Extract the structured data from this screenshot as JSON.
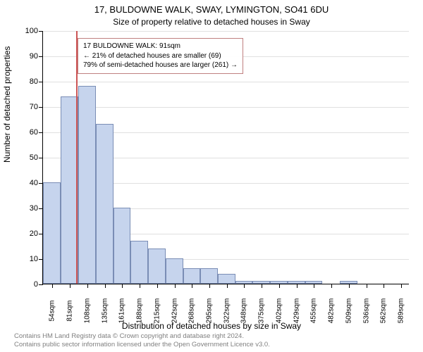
{
  "chart": {
    "type": "histogram",
    "title_main": "17, BULDOWNE WALK, SWAY, LYMINGTON, SO41 6DU",
    "title_sub": "Size of property relative to detached houses in Sway",
    "x_axis_label": "Distribution of detached houses by size in Sway",
    "y_axis_label": "Number of detached properties",
    "background_color": "#ffffff",
    "grid_color": "#e0e0e0",
    "bar_fill_color": "#c6d4ed",
    "bar_border_color": "#7a8db5",
    "marker_color": "#cc5555",
    "marker_x_value": 91,
    "x_min": 40,
    "x_max": 602,
    "ylim": [
      0,
      100
    ],
    "ytick_step": 10,
    "x_tick_labels": [
      "54sqm",
      "81sqm",
      "108sqm",
      "135sqm",
      "161sqm",
      "188sqm",
      "215sqm",
      "242sqm",
      "268sqm",
      "295sqm",
      "322sqm",
      "348sqm",
      "375sqm",
      "402sqm",
      "429sqm",
      "455sqm",
      "482sqm",
      "509sqm",
      "536sqm",
      "562sqm",
      "589sqm"
    ],
    "x_tick_values": [
      54,
      81,
      108,
      135,
      161,
      188,
      215,
      242,
      268,
      295,
      322,
      348,
      375,
      402,
      429,
      455,
      482,
      509,
      536,
      562,
      589
    ],
    "bars": [
      {
        "x_start": 40,
        "x_end": 67,
        "value": 40
      },
      {
        "x_start": 67,
        "x_end": 94,
        "value": 74
      },
      {
        "x_start": 94,
        "x_end": 121,
        "value": 78
      },
      {
        "x_start": 121,
        "x_end": 148,
        "value": 63
      },
      {
        "x_start": 148,
        "x_end": 174,
        "value": 30
      },
      {
        "x_start": 174,
        "x_end": 201,
        "value": 17
      },
      {
        "x_start": 201,
        "x_end": 228,
        "value": 14
      },
      {
        "x_start": 228,
        "x_end": 255,
        "value": 10
      },
      {
        "x_start": 255,
        "x_end": 281,
        "value": 6
      },
      {
        "x_start": 281,
        "x_end": 308,
        "value": 6
      },
      {
        "x_start": 308,
        "x_end": 335,
        "value": 4
      },
      {
        "x_start": 335,
        "x_end": 361,
        "value": 1
      },
      {
        "x_start": 361,
        "x_end": 388,
        "value": 1
      },
      {
        "x_start": 388,
        "x_end": 415,
        "value": 1
      },
      {
        "x_start": 415,
        "x_end": 442,
        "value": 1
      },
      {
        "x_start": 442,
        "x_end": 468,
        "value": 1
      },
      {
        "x_start": 468,
        "x_end": 495,
        "value": 0
      },
      {
        "x_start": 495,
        "x_end": 522,
        "value": 1
      },
      {
        "x_start": 522,
        "x_end": 549,
        "value": 0
      },
      {
        "x_start": 549,
        "x_end": 575,
        "value": 0
      },
      {
        "x_start": 575,
        "x_end": 602,
        "value": 0
      }
    ],
    "annotation": {
      "line1": "17 BULDOWNE WALK: 91sqm",
      "line2": "← 21% of detached houses are smaller (69)",
      "line3": "79% of semi-detached houses are larger (261) →",
      "border_color": "#c08080"
    },
    "label_fontsize": 12,
    "tick_fontsize": 11,
    "title_fontsize": 13
  },
  "footer": {
    "line1": "Contains HM Land Registry data © Crown copyright and database right 2024.",
    "line2": "Contains public sector information licensed under the Open Government Licence v3.0."
  }
}
